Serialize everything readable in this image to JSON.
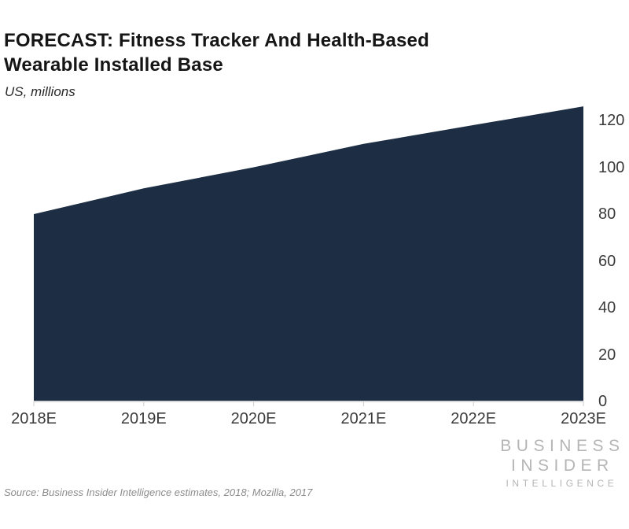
{
  "header": {
    "title": "FORECAST: Fitness Tracker And Health-Based Wearable Installed Base",
    "subtitle": "US, millions"
  },
  "chart_data": {
    "type": "area",
    "title": "FORECAST: Fitness Tracker And Health-Based Wearable Installed Base",
    "subtitle": "US, millions",
    "categories": [
      "2018E",
      "2019E",
      "2020E",
      "2021E",
      "2022E",
      "2023E"
    ],
    "series": [
      {
        "name": "Installed base (millions)",
        "values": [
          80,
          91,
          100,
          110,
          118,
          126
        ]
      }
    ],
    "xlabel": "",
    "ylabel": "US, millions",
    "ylim": [
      0,
      126
    ],
    "yticks": [
      0,
      20,
      40,
      60,
      80,
      100,
      120
    ],
    "ytick_side": "right",
    "grid": false,
    "legend": "none"
  },
  "footer": {
    "source": "Source: Business Insider Intelligence estimates, 2018; Mozilla, 2017",
    "logo_line1": "BUSINESS",
    "logo_line2": "INSIDER",
    "logo_line3": "INTELLIGENCE"
  },
  "colors": {
    "area_fill": "#1d2e44",
    "axis_line": "#cccccc",
    "tick_mark": "#cccccc",
    "axis_label": "#3a3a3a",
    "title_text": "#151515",
    "source_text": "#8c8c8c",
    "logo_text": "#b5b5b5"
  }
}
